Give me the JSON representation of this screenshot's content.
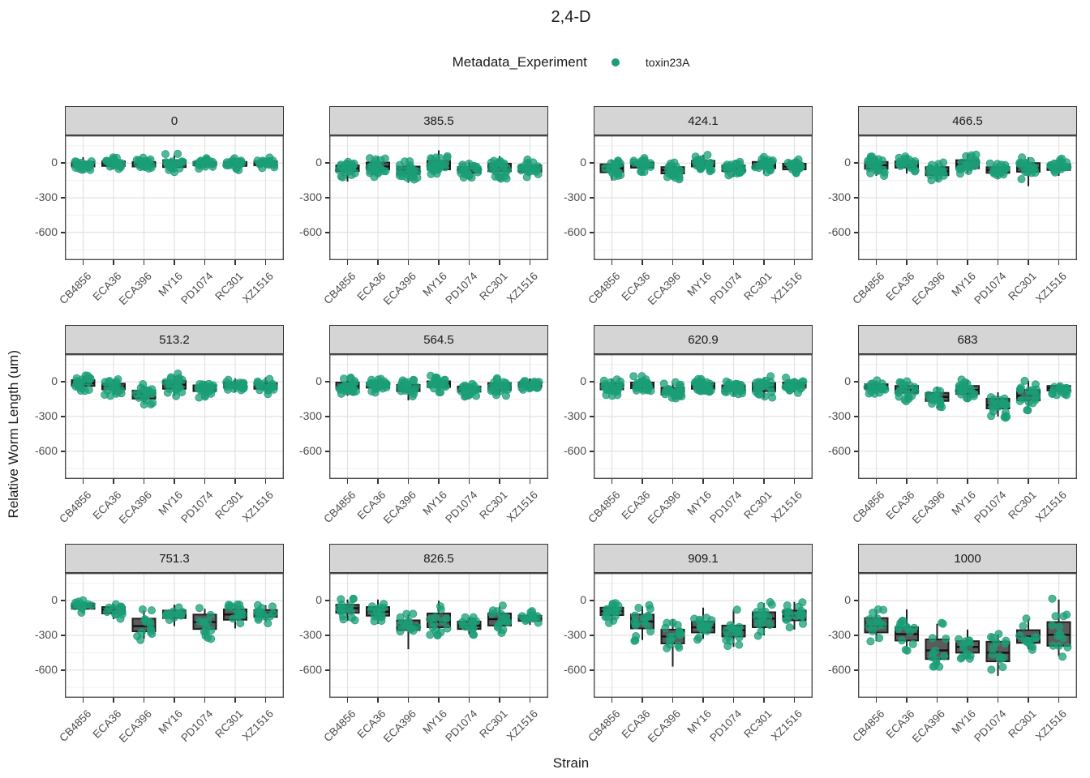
{
  "title": "2,4-D",
  "legend": {
    "title": "Metadata_Experiment",
    "items": [
      {
        "label": "toxin23A",
        "color": "#1B9E77"
      }
    ]
  },
  "axes": {
    "x_title": "Strain",
    "y_title": "Relative Worm Length (um)",
    "y_tick_labels": [
      "0",
      "-300",
      "-600"
    ]
  },
  "colors": {
    "point": "#1B9E77",
    "box_fill": "#5b5b5b",
    "box_stroke": "#1f1f1f",
    "strip_bg": "#d5d5d5",
    "panel_border": "#4d4d4d",
    "grid_major": "#e2e2e2",
    "grid_minor": "#f0f0f0",
    "tick_text": "#4d4d4d"
  },
  "chart_data": {
    "type": "boxplot-jitter",
    "title": "2,4-D",
    "xlabel": "Strain",
    "ylabel": "Relative Worm Length (um)",
    "series_name": "toxin23A",
    "categories": [
      "CB4856",
      "ECA36",
      "ECA396",
      "MY16",
      "PD1074",
      "RC301",
      "XZ1516"
    ],
    "y_ticks": [
      0,
      -300,
      -600
    ],
    "y_minor_ticks": [
      150,
      -150,
      -450,
      -750
    ],
    "ylim_top": 240,
    "ylim_bottom": -840,
    "grid": true,
    "legend_position": "top",
    "facet_note": "boxes are [whisker_low, q1, median, q3, whisker_high] in um, per strain order of categories",
    "facets": [
      {
        "label": "0",
        "n": 20,
        "boxes": [
          [
            -60,
            -30,
            -10,
            10,
            50
          ],
          [
            -55,
            -25,
            -5,
            15,
            55
          ],
          [
            -60,
            -30,
            -10,
            10,
            45
          ],
          [
            -70,
            -35,
            -5,
            25,
            70
          ],
          [
            -45,
            -20,
            -5,
            10,
            35
          ],
          [
            -50,
            -25,
            -10,
            10,
            40
          ],
          [
            -45,
            -20,
            -5,
            15,
            45
          ]
        ]
      },
      {
        "label": "385.5",
        "n": 22,
        "boxes": [
          [
            -160,
            -70,
            -45,
            -20,
            30
          ],
          [
            -120,
            -55,
            -30,
            5,
            60
          ],
          [
            -170,
            -95,
            -60,
            -30,
            10
          ],
          [
            -90,
            -55,
            -25,
            20,
            110
          ],
          [
            -150,
            -85,
            -60,
            -35,
            10
          ],
          [
            -160,
            -70,
            -40,
            -5,
            60
          ],
          [
            -110,
            -75,
            -45,
            -20,
            30
          ]
        ]
      },
      {
        "label": "424.1",
        "n": 20,
        "boxes": [
          [
            -150,
            -80,
            -45,
            -10,
            30
          ],
          [
            -90,
            -40,
            -20,
            5,
            40
          ],
          [
            -140,
            -90,
            -60,
            -35,
            -5
          ],
          [
            -60,
            -30,
            -10,
            20,
            70
          ],
          [
            -120,
            -70,
            -45,
            -20,
            10
          ],
          [
            -90,
            -45,
            -20,
            10,
            50
          ],
          [
            -100,
            -55,
            -30,
            -5,
            30
          ]
        ]
      },
      {
        "label": "466.5",
        "n": 20,
        "boxes": [
          [
            -110,
            -50,
            -20,
            10,
            60
          ],
          [
            -90,
            -40,
            -15,
            15,
            70
          ],
          [
            -160,
            -105,
            -70,
            -35,
            0
          ],
          [
            -90,
            -45,
            -10,
            25,
            80
          ],
          [
            -130,
            -85,
            -60,
            -35,
            -5
          ],
          [
            -200,
            -75,
            -40,
            0,
            50
          ],
          [
            -110,
            -60,
            -35,
            -10,
            40
          ]
        ]
      },
      {
        "label": "513.2",
        "n": 20,
        "boxes": [
          [
            -70,
            -35,
            -10,
            15,
            50
          ],
          [
            -110,
            -65,
            -40,
            -15,
            20
          ],
          [
            -190,
            -145,
            -110,
            -75,
            -30
          ],
          [
            -120,
            -60,
            -25,
            10,
            60
          ],
          [
            -130,
            -80,
            -55,
            -30,
            0
          ],
          [
            -90,
            -50,
            -30,
            -5,
            30
          ],
          [
            -100,
            -60,
            -35,
            -10,
            40
          ]
        ]
      },
      {
        "label": "564.5",
        "n": 22,
        "boxes": [
          [
            -120,
            -60,
            -35,
            -5,
            40
          ],
          [
            -90,
            -50,
            -30,
            -10,
            20
          ],
          [
            -160,
            -80,
            -50,
            -25,
            10
          ],
          [
            -80,
            -45,
            -20,
            5,
            50
          ],
          [
            -120,
            -85,
            -65,
            -40,
            -10
          ],
          [
            -110,
            -70,
            -40,
            -10,
            30
          ],
          [
            -80,
            -45,
            -25,
            -5,
            30
          ]
        ]
      },
      {
        "label": "620.9",
        "n": 24,
        "boxes": [
          [
            -110,
            -65,
            -40,
            -15,
            30
          ],
          [
            -90,
            -55,
            -30,
            -5,
            40
          ],
          [
            -150,
            -110,
            -80,
            -50,
            -10
          ],
          [
            -100,
            -60,
            -35,
            -10,
            30
          ],
          [
            -120,
            -80,
            -55,
            -30,
            0
          ],
          [
            -140,
            -80,
            -45,
            -10,
            40
          ],
          [
            -90,
            -50,
            -30,
            -5,
            30
          ]
        ]
      },
      {
        "label": "683",
        "n": 18,
        "boxes": [
          [
            -100,
            -60,
            -40,
            -20,
            10
          ],
          [
            -160,
            -95,
            -65,
            -35,
            0
          ],
          [
            -230,
            -165,
            -130,
            -95,
            -40
          ],
          [
            -170,
            -105,
            -70,
            -35,
            10
          ],
          [
            -300,
            -230,
            -200,
            -145,
            -90
          ],
          [
            -240,
            -160,
            -120,
            -70,
            10
          ],
          [
            -110,
            -75,
            -55,
            -35,
            -10
          ]
        ]
      },
      {
        "label": "751.3",
        "n": 13,
        "boxes": [
          [
            -110,
            -70,
            -45,
            -25,
            -5
          ],
          [
            -160,
            -110,
            -80,
            -55,
            -25
          ],
          [
            -330,
            -265,
            -220,
            -155,
            -85
          ],
          [
            -220,
            -150,
            -120,
            -85,
            -35
          ],
          [
            -330,
            -245,
            -185,
            -120,
            -70
          ],
          [
            -240,
            -165,
            -120,
            -75,
            -35
          ],
          [
            -185,
            -140,
            -110,
            -80,
            -40
          ]
        ]
      },
      {
        "label": "826.5",
        "n": 14,
        "boxes": [
          [
            -175,
            -105,
            -65,
            -35,
            10
          ],
          [
            -200,
            -130,
            -95,
            -55,
            10
          ],
          [
            -420,
            -255,
            -210,
            -170,
            -120
          ],
          [
            -290,
            -230,
            -185,
            -110,
            0
          ],
          [
            -290,
            -245,
            -215,
            -180,
            -140
          ],
          [
            -280,
            -215,
            -160,
            -110,
            -50
          ],
          [
            -210,
            -175,
            -150,
            -130,
            -100
          ]
        ]
      },
      {
        "label": "909.1",
        "n": 16,
        "boxes": [
          [
            -190,
            -125,
            -90,
            -60,
            -30
          ],
          [
            -340,
            -240,
            -180,
            -120,
            -50
          ],
          [
            -570,
            -370,
            -310,
            -250,
            -160
          ],
          [
            -330,
            -275,
            -230,
            -180,
            -60
          ],
          [
            -400,
            -310,
            -255,
            -215,
            -80
          ],
          [
            -300,
            -230,
            -155,
            -100,
            -20
          ],
          [
            -250,
            -170,
            -130,
            -85,
            -10
          ]
        ]
      },
      {
        "label": "1000",
        "n": 13,
        "boxes": [
          [
            -350,
            -275,
            -220,
            -150,
            -80
          ],
          [
            -420,
            -345,
            -290,
            -230,
            -75
          ],
          [
            -570,
            -505,
            -430,
            -335,
            -200
          ],
          [
            -490,
            -450,
            -400,
            -350,
            -250
          ],
          [
            -650,
            -525,
            -450,
            -355,
            -290
          ],
          [
            -420,
            -365,
            -310,
            -255,
            -160
          ],
          [
            -480,
            -390,
            -295,
            -185,
            10
          ]
        ]
      }
    ]
  }
}
